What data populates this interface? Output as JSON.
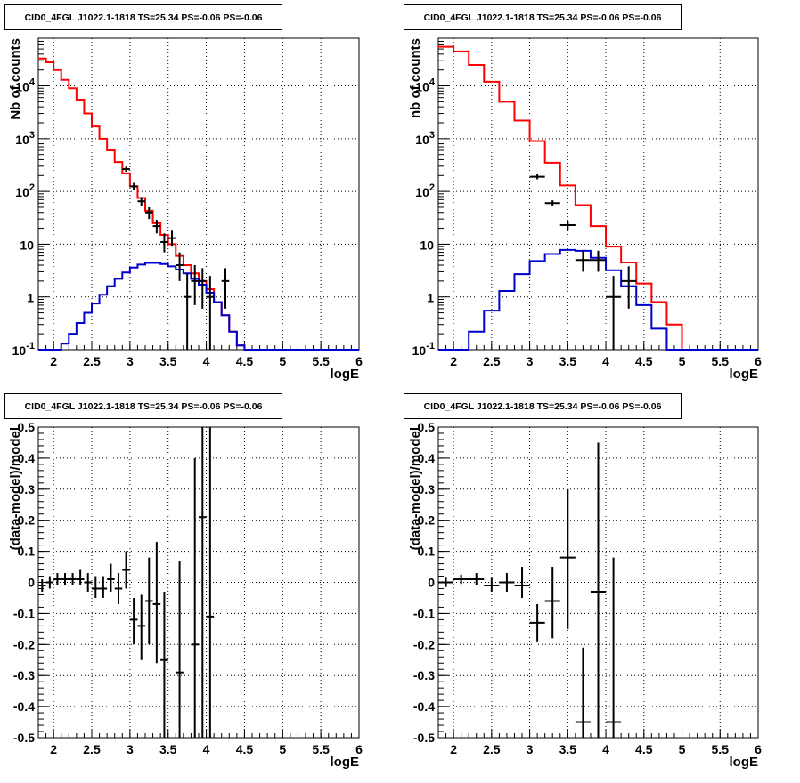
{
  "chart_data": [
    {
      "type": "histogram",
      "title": "CID0_4FGL J1022.1-1818 TS=25.34 PS=-0.06 PS=-0.06",
      "xlabel": "logE",
      "ylabel": "Nb of counts",
      "xlim": [
        1.8,
        6.0
      ],
      "ylim": [
        0.1,
        80000
      ],
      "yscale": "log",
      "grid": true,
      "x_ticks": [
        "2",
        "2.5",
        "3",
        "3.5",
        "4",
        "4.5",
        "5",
        "5.5",
        "6"
      ],
      "y_ticks": [
        "10^-1",
        "1",
        "10",
        "10^2",
        "10^3",
        "10^4"
      ],
      "bin_width": 0.1,
      "series": [
        {
          "role": "model-total",
          "color": "#ff0000",
          "bin_lefts": [
            1.8,
            1.9,
            2.0,
            2.1,
            2.2,
            2.3,
            2.4,
            2.5,
            2.6,
            2.7,
            2.8,
            2.9,
            3.0,
            3.1,
            3.2,
            3.3,
            3.4,
            3.5,
            3.6,
            3.7,
            3.8,
            3.9,
            4.0,
            4.1,
            4.2,
            4.3,
            4.4,
            4.5,
            4.6,
            4.7,
            4.8,
            4.9,
            5.0,
            5.1,
            5.2,
            5.3,
            5.4,
            5.5,
            5.6,
            5.7,
            5.8,
            5.9
          ],
          "values": [
            33000,
            28000,
            20000,
            13000,
            9000,
            5500,
            3000,
            1700,
            1000,
            600,
            360,
            220,
            125,
            75,
            43,
            25,
            15,
            10,
            6,
            4,
            2.8,
            2,
            1.4,
            0.8,
            0.45,
            0.22,
            0.12,
            0.1,
            0.1,
            0.1,
            0.1,
            0.1,
            0.1,
            0.1,
            0.1,
            0.1,
            0.1,
            0.1,
            0.1,
            0.1,
            0.1,
            0.1
          ]
        },
        {
          "role": "model-source",
          "color": "#0000cc",
          "bin_lefts": [
            1.8,
            1.9,
            2.0,
            2.1,
            2.2,
            2.3,
            2.4,
            2.5,
            2.6,
            2.7,
            2.8,
            2.9,
            3.0,
            3.1,
            3.2,
            3.3,
            3.4,
            3.5,
            3.6,
            3.7,
            3.8,
            3.9,
            4.0,
            4.1,
            4.2,
            4.3,
            4.4,
            4.5,
            4.6,
            4.7,
            4.8,
            4.9,
            5.0,
            5.1,
            5.2,
            5.3,
            5.4,
            5.5,
            5.6,
            5.7,
            5.8,
            5.9
          ],
          "values": [
            0.1,
            0.1,
            0.1,
            0.13,
            0.2,
            0.32,
            0.5,
            0.75,
            1.1,
            1.6,
            2.2,
            2.9,
            3.6,
            4.1,
            4.4,
            4.4,
            4.2,
            3.8,
            3.3,
            2.8,
            2.2,
            1.7,
            1.2,
            0.8,
            0.45,
            0.22,
            0.12,
            0.1,
            0.1,
            0.1,
            0.1,
            0.1,
            0.1,
            0.1,
            0.1,
            0.1,
            0.1,
            0.1,
            0.1,
            0.1,
            0.1,
            0.1
          ]
        },
        {
          "role": "data",
          "color": "#000000",
          "points": [
            {
              "x": 2.95,
              "y": 265,
              "lo": 235,
              "hi": 295
            },
            {
              "x": 3.05,
              "y": 125,
              "lo": 105,
              "hi": 145
            },
            {
              "x": 3.15,
              "y": 65,
              "lo": 52,
              "hi": 78
            },
            {
              "x": 3.25,
              "y": 40,
              "lo": 30,
              "hi": 50
            },
            {
              "x": 3.35,
              "y": 22,
              "lo": 16,
              "hi": 29
            },
            {
              "x": 3.45,
              "y": 11,
              "lo": 7,
              "hi": 16
            },
            {
              "x": 3.55,
              "y": 13,
              "lo": 9,
              "hi": 18
            },
            {
              "x": 3.65,
              "y": 4,
              "lo": 2,
              "hi": 7
            },
            {
              "x": 3.75,
              "y": 1,
              "lo": 0.1,
              "hi": 2.8
            },
            {
              "x": 3.85,
              "y": 2,
              "lo": 0.7,
              "hi": 4
            },
            {
              "x": 3.95,
              "y": 2,
              "lo": 0.6,
              "hi": 3.5
            },
            {
              "x": 4.05,
              "y": 1,
              "lo": 0.1,
              "hi": 2.5
            },
            {
              "x": 4.25,
              "y": 2,
              "lo": 0.6,
              "hi": 3.5
            }
          ]
        }
      ]
    },
    {
      "type": "histogram",
      "title": "CID0_4FGL J1022.1-1818 TS=25.34 PS=-0.06 PS=-0.06",
      "xlabel": "logE",
      "ylabel": "nb of counts",
      "xlim": [
        1.8,
        6.0
      ],
      "ylim": [
        0.1,
        80000
      ],
      "yscale": "log",
      "grid": true,
      "x_ticks": [
        "2",
        "2.5",
        "3",
        "3.5",
        "4",
        "4.5",
        "5",
        "5.5",
        "6"
      ],
      "y_ticks": [
        "10^-1",
        "1",
        "10",
        "10^2",
        "10^3",
        "10^4"
      ],
      "bin_width": 0.2,
      "series": [
        {
          "role": "model-total",
          "color": "#ff0000",
          "bin_lefts": [
            1.8,
            2.0,
            2.2,
            2.4,
            2.6,
            2.8,
            3.0,
            3.2,
            3.4,
            3.6,
            3.8,
            4.0,
            4.2,
            4.4,
            4.6,
            4.8,
            5.0,
            5.2,
            5.4,
            5.6,
            5.8
          ],
          "values": [
            55000,
            45000,
            25000,
            12000,
            5000,
            2200,
            900,
            350,
            130,
            55,
            22,
            9,
            4.5,
            1.8,
            0.8,
            0.3,
            0.1,
            0.1,
            0.1,
            0.1,
            0.1
          ]
        },
        {
          "role": "model-source",
          "color": "#0000cc",
          "bin_lefts": [
            1.8,
            2.0,
            2.2,
            2.4,
            2.6,
            2.8,
            3.0,
            3.2,
            3.4,
            3.6,
            3.8,
            4.0,
            4.2,
            4.4,
            4.6,
            4.8,
            5.0,
            5.2,
            5.4,
            5.6,
            5.8
          ],
          "values": [
            0.1,
            0.1,
            0.22,
            0.55,
            1.3,
            2.7,
            4.8,
            6.5,
            7.8,
            7.5,
            5.5,
            3.2,
            1.6,
            0.7,
            0.25,
            0.1,
            0.1,
            0.1,
            0.1,
            0.1,
            0.1
          ]
        },
        {
          "role": "data",
          "color": "#000000",
          "points": [
            {
              "x": 3.1,
              "y": 190,
              "lo": 170,
              "hi": 210
            },
            {
              "x": 3.3,
              "y": 60,
              "lo": 52,
              "hi": 68
            },
            {
              "x": 3.5,
              "y": 23,
              "lo": 18,
              "hi": 28
            },
            {
              "x": 3.7,
              "y": 5,
              "lo": 3,
              "hi": 7.5
            },
            {
              "x": 3.9,
              "y": 5,
              "lo": 3,
              "hi": 7.5
            },
            {
              "x": 4.1,
              "y": 1,
              "lo": 0.1,
              "hi": 2.5
            },
            {
              "x": 4.3,
              "y": 2,
              "lo": 0.6,
              "hi": 3.8
            }
          ]
        }
      ]
    },
    {
      "type": "scatter",
      "title": "CID0_4FGL J1022.1-1818 TS=25.34 PS=-0.06 PS=-0.06",
      "xlabel": "logE",
      "ylabel": "(data-model)/model",
      "xlim": [
        1.8,
        6.0
      ],
      "ylim": [
        -0.5,
        0.5
      ],
      "grid": true,
      "x_ticks": [
        "2",
        "2.5",
        "3",
        "3.5",
        "4",
        "4.5",
        "5",
        "5.5",
        "6"
      ],
      "y_ticks": [
        "-0.5",
        "-0.4",
        "-0.3",
        "-0.2",
        "-0.1",
        "0",
        "0.1",
        "0.2",
        "0.3",
        "0.4",
        "0.5"
      ],
      "bin_width": 0.1,
      "series": [
        {
          "role": "residuals",
          "color": "#000000",
          "points": [
            {
              "x": 1.85,
              "y": -0.01,
              "lo": -0.03,
              "hi": 0.01
            },
            {
              "x": 1.95,
              "y": 0.0,
              "lo": -0.02,
              "hi": 0.02
            },
            {
              "x": 2.05,
              "y": 0.01,
              "lo": -0.01,
              "hi": 0.03
            },
            {
              "x": 2.15,
              "y": 0.01,
              "lo": -0.01,
              "hi": 0.03
            },
            {
              "x": 2.25,
              "y": 0.01,
              "lo": -0.01,
              "hi": 0.03
            },
            {
              "x": 2.35,
              "y": 0.01,
              "lo": -0.01,
              "hi": 0.04
            },
            {
              "x": 2.45,
              "y": 0.0,
              "lo": -0.03,
              "hi": 0.03
            },
            {
              "x": 2.55,
              "y": -0.02,
              "lo": -0.05,
              "hi": 0.02
            },
            {
              "x": 2.65,
              "y": -0.02,
              "lo": -0.05,
              "hi": 0.02
            },
            {
              "x": 2.75,
              "y": 0.01,
              "lo": -0.03,
              "hi": 0.06
            },
            {
              "x": 2.85,
              "y": -0.02,
              "lo": -0.07,
              "hi": 0.03
            },
            {
              "x": 2.95,
              "y": 0.04,
              "lo": -0.02,
              "hi": 0.1
            },
            {
              "x": 3.05,
              "y": -0.12,
              "lo": -0.2,
              "hi": -0.05
            },
            {
              "x": 3.15,
              "y": -0.14,
              "lo": -0.25,
              "hi": -0.04
            },
            {
              "x": 3.25,
              "y": -0.06,
              "lo": -0.2,
              "hi": 0.08
            },
            {
              "x": 3.35,
              "y": -0.07,
              "lo": -0.26,
              "hi": 0.13
            },
            {
              "x": 3.45,
              "y": -0.25,
              "lo": -0.5,
              "hi": -0.03
            },
            {
              "x": 3.65,
              "y": -0.29,
              "lo": -0.5,
              "hi": 0.07
            },
            {
              "x": 3.85,
              "y": -0.2,
              "lo": -0.5,
              "hi": 0.4
            },
            {
              "x": 3.95,
              "y": 0.21,
              "lo": -0.5,
              "hi": 0.5
            },
            {
              "x": 4.05,
              "y": -0.11,
              "lo": -0.5,
              "hi": 0.5
            }
          ]
        }
      ]
    },
    {
      "type": "scatter",
      "title": "CID0_4FGL J1022.1-1818 TS=25.34 PS=-0.06 PS=-0.06",
      "xlabel": "logE",
      "ylabel": "(data-model)/model",
      "xlim": [
        1.8,
        6.0
      ],
      "ylim": [
        -0.5,
        0.5
      ],
      "grid": true,
      "x_ticks": [
        "2",
        "2.5",
        "3",
        "3.5",
        "4",
        "4.5",
        "5",
        "5.5",
        "6"
      ],
      "y_ticks": [
        "-0.5",
        "-0.4",
        "-0.3",
        "-0.2",
        "-0.1",
        "0",
        "0.1",
        "0.2",
        "0.3",
        "0.4",
        "0.5"
      ],
      "bin_width": 0.2,
      "series": [
        {
          "role": "residuals",
          "color": "#000000",
          "points": [
            {
              "x": 1.9,
              "y": 0.0,
              "lo": -0.015,
              "hi": 0.015
            },
            {
              "x": 2.1,
              "y": 0.01,
              "lo": -0.005,
              "hi": 0.025
            },
            {
              "x": 2.3,
              "y": 0.01,
              "lo": -0.01,
              "hi": 0.03
            },
            {
              "x": 2.5,
              "y": -0.01,
              "lo": -0.03,
              "hi": 0.015
            },
            {
              "x": 2.7,
              "y": 0.0,
              "lo": -0.03,
              "hi": 0.03
            },
            {
              "x": 2.9,
              "y": -0.01,
              "lo": -0.05,
              "hi": 0.05
            },
            {
              "x": 3.1,
              "y": -0.13,
              "lo": -0.19,
              "hi": -0.07
            },
            {
              "x": 3.3,
              "y": -0.06,
              "lo": -0.18,
              "hi": 0.05
            },
            {
              "x": 3.5,
              "y": 0.08,
              "lo": -0.15,
              "hi": 0.3
            },
            {
              "x": 3.7,
              "y": -0.45,
              "lo": -0.5,
              "hi": -0.21
            },
            {
              "x": 3.9,
              "y": -0.03,
              "lo": -0.5,
              "hi": 0.45
            },
            {
              "x": 4.1,
              "y": -0.45,
              "lo": -0.5,
              "hi": 0.08
            }
          ]
        }
      ]
    }
  ]
}
